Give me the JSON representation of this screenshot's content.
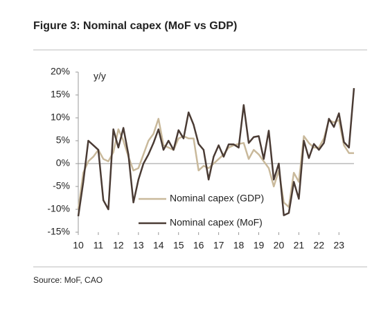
{
  "chart_data": {
    "type": "line",
    "title": "Figure 3: Nominal capex (MoF vs GDP)",
    "annotation": "y/y",
    "source": "Source: MoF, CAO",
    "x": [
      10,
      10.25,
      10.5,
      10.75,
      11,
      11.25,
      11.5,
      11.75,
      12,
      12.25,
      12.5,
      12.75,
      13,
      13.25,
      13.5,
      13.75,
      14,
      14.25,
      14.5,
      14.75,
      15,
      15.25,
      15.5,
      15.75,
      16,
      16.25,
      16.5,
      16.75,
      17,
      17.25,
      17.5,
      17.75,
      18,
      18.25,
      18.5,
      18.75,
      19,
      19.25,
      19.5,
      19.75,
      20,
      20.25,
      20.5,
      20.75,
      21,
      21.25,
      21.5,
      21.75,
      22,
      22.25,
      22.5,
      22.75,
      23,
      23.25,
      23.5,
      23.75
    ],
    "series": [
      {
        "name": "Nominal capex (GDP)",
        "color": "#c9b99b",
        "values": [
          -10,
          -2,
          0.5,
          1.5,
          3,
          1,
          0.5,
          2.5,
          7.5,
          5,
          1.5,
          -1.5,
          -1,
          2,
          5,
          6.5,
          9.8,
          4,
          3.5,
          3,
          5.5,
          6,
          5.5,
          5.5,
          -1.5,
          -0.5,
          -1,
          0,
          1,
          2,
          3.5,
          4,
          4.3,
          4.5,
          1,
          3,
          2,
          0.5,
          -1,
          -5,
          -1.5,
          -8.5,
          -9.5,
          -2,
          -4,
          6,
          4.5,
          3.5,
          3.5,
          5.5,
          9.5,
          9,
          9.5,
          4,
          2.3,
          2.3
        ]
      },
      {
        "name": "Nominal capex (MoF)",
        "color": "#4a3b34",
        "values": [
          -11.5,
          -4,
          5,
          4,
          3,
          -8,
          -10,
          7.5,
          3.5,
          7.8,
          2,
          -8.5,
          -3.5,
          0,
          2,
          4.5,
          7.5,
          3,
          5,
          3,
          7.3,
          5.5,
          11.2,
          8.5,
          4.3,
          3,
          -3.5,
          1.5,
          4,
          1.5,
          4.2,
          4.2,
          3.5,
          12.8,
          4.5,
          5.8,
          6,
          1,
          7.2,
          -3.5,
          0,
          -11.3,
          -10.8,
          -4,
          -7.7,
          5,
          1.2,
          4.3,
          3,
          4.5,
          9.8,
          8,
          11,
          4.7,
          3.5,
          16.5
        ]
      }
    ],
    "xlim": [
      10,
      23.75
    ],
    "xticks": [
      10,
      11,
      12,
      13,
      14,
      15,
      16,
      17,
      18,
      19,
      20,
      21,
      22,
      23
    ],
    "ylim": [
      -15,
      20
    ],
    "yticks": [
      {
        "value": -15,
        "label": "-15%"
      },
      {
        "value": -10,
        "label": "-10%"
      },
      {
        "value": -5,
        "label": "-5%"
      },
      {
        "value": 0,
        "label": "0%"
      },
      {
        "value": 5,
        "label": "5%"
      },
      {
        "value": 10,
        "label": "10%"
      },
      {
        "value": 15,
        "label": "15%"
      },
      {
        "value": 20,
        "label": "20%"
      }
    ],
    "grid": false
  }
}
